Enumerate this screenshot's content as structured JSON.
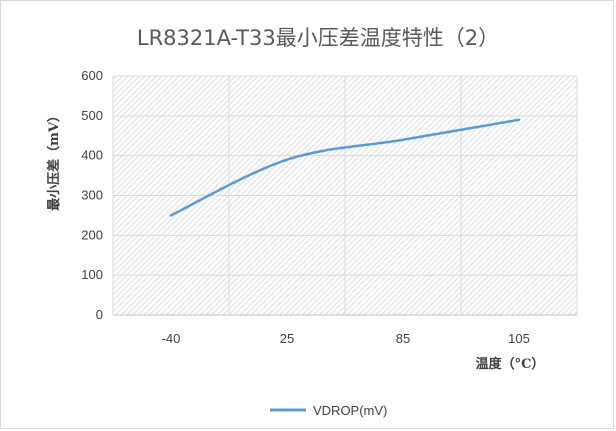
{
  "chart_data": {
    "type": "line",
    "title": "LR8321A-T33最小压差温度特性（2）",
    "xlabel": "温度（°C）",
    "ylabel": "最小压差（mV）",
    "categories": [
      "-40",
      "25",
      "85",
      "105"
    ],
    "ylim": [
      0,
      600
    ],
    "yticks": [
      0,
      100,
      200,
      300,
      400,
      500,
      600
    ],
    "grid": true,
    "legend": "bottom",
    "series": [
      {
        "name": "VDROP(mV)",
        "values": [
          250,
          390,
          440,
          490
        ],
        "color": "#5b9bd5"
      }
    ]
  }
}
